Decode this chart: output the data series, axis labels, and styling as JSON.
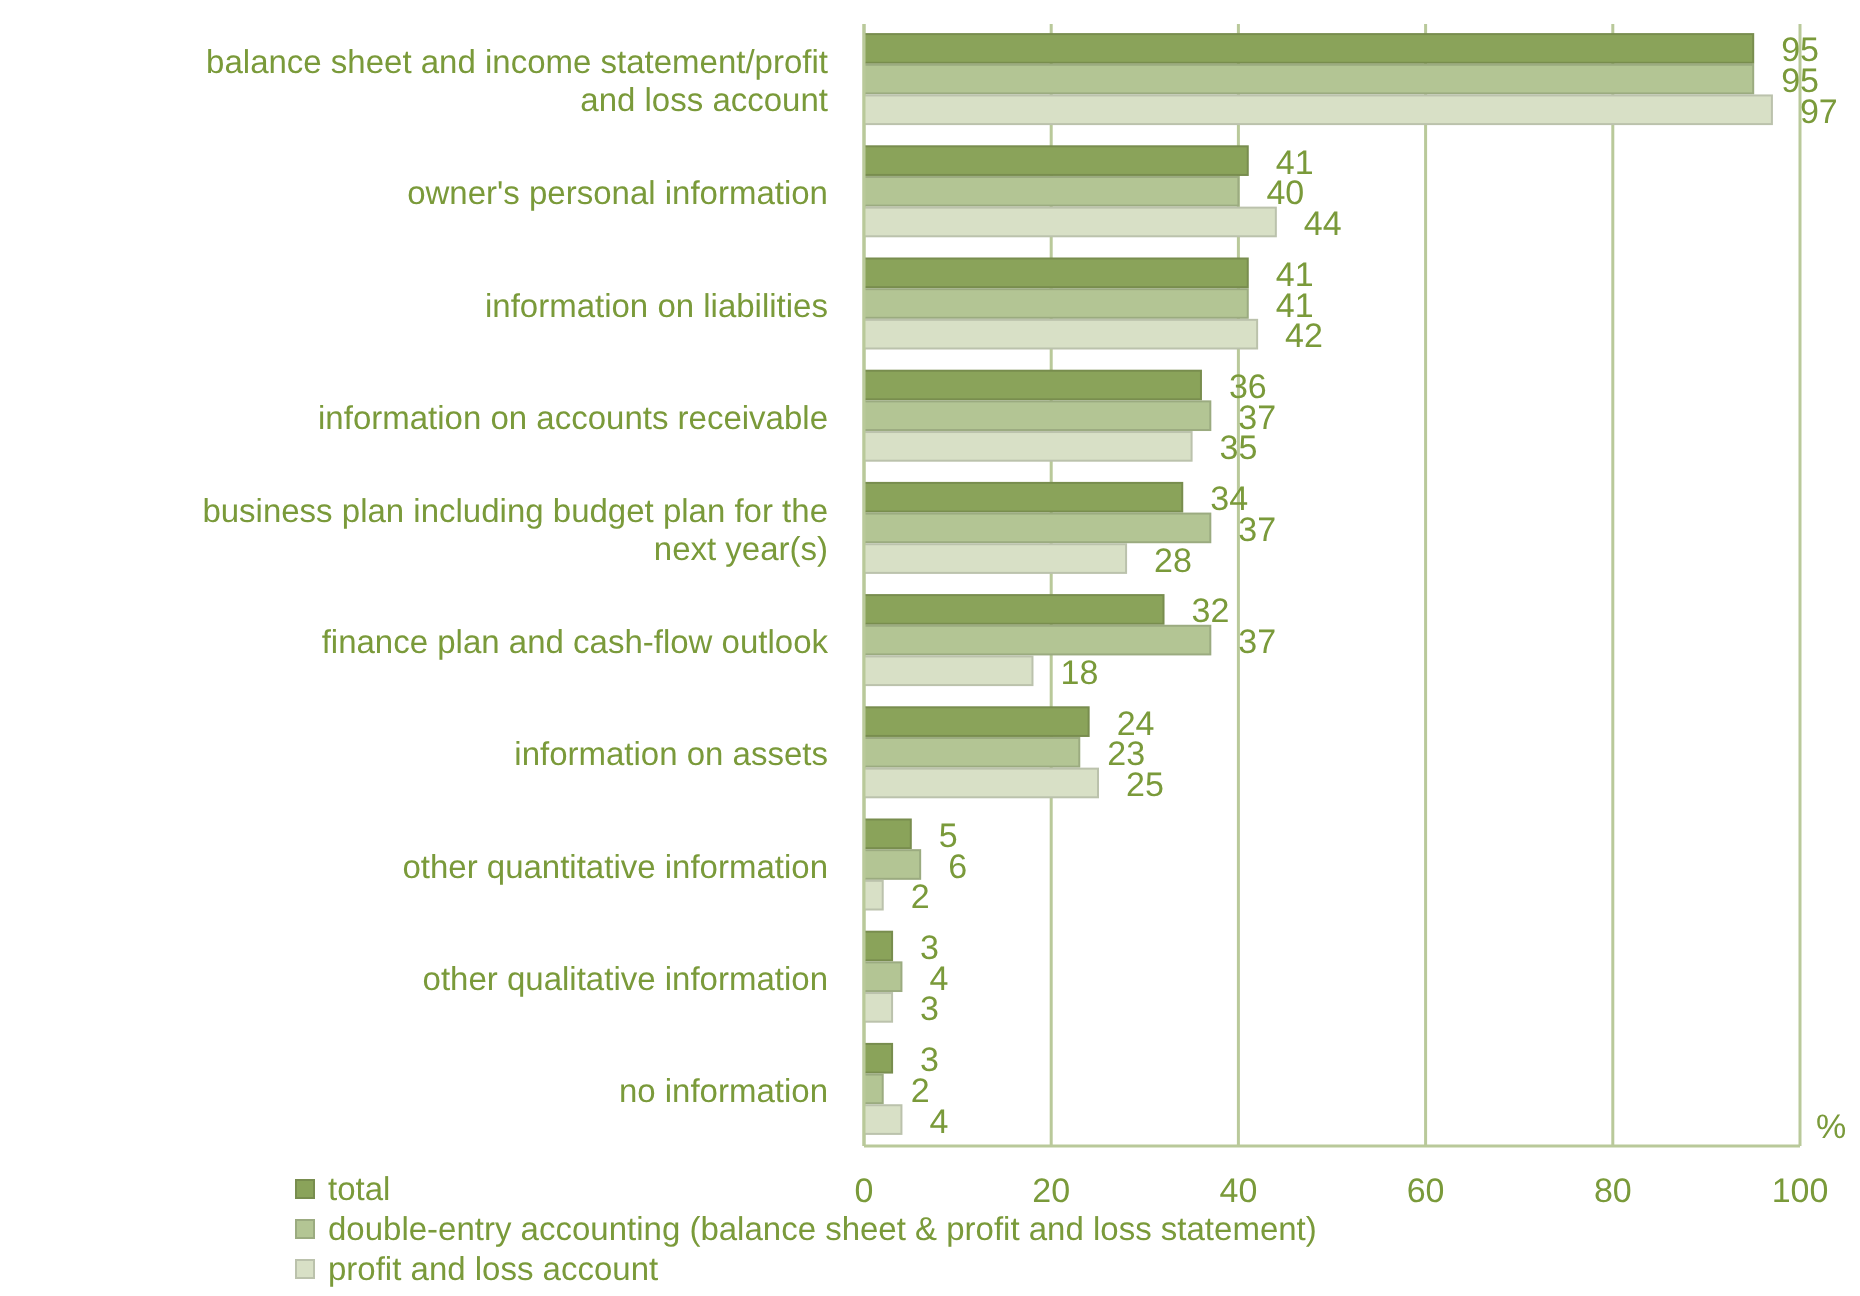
{
  "chart_data": {
    "type": "bar",
    "orientation": "horizontal",
    "xlabel": "%",
    "categories": [
      "balance sheet and income statement/profit and loss account",
      "owner's personal information",
      "information on liabilities",
      "information on accounts receivable",
      "business plan including budget plan for the next year(s)",
      "finance plan and cash-flow outlook",
      "information on assets",
      "other quantitative information",
      "other qualitative information",
      "no information"
    ],
    "series": [
      {
        "name": "total",
        "color": "#8aa35a",
        "values": [
          95,
          41,
          41,
          36,
          34,
          32,
          24,
          5,
          3,
          3
        ]
      },
      {
        "name": "double-entry accounting (balance sheet & profit and loss statement)",
        "color": "#b3c594",
        "values": [
          95,
          40,
          41,
          37,
          37,
          37,
          23,
          6,
          4,
          2
        ]
      },
      {
        "name": "profit and loss account",
        "color": "#d8e0c6",
        "values": [
          97,
          44,
          42,
          35,
          28,
          18,
          25,
          2,
          3,
          4
        ]
      }
    ],
    "xlim": [
      0,
      100
    ],
    "xticks": [
      0,
      20,
      40,
      60,
      80,
      100
    ],
    "grid": "x",
    "legend": "bottom left",
    "data_labels": true
  }
}
